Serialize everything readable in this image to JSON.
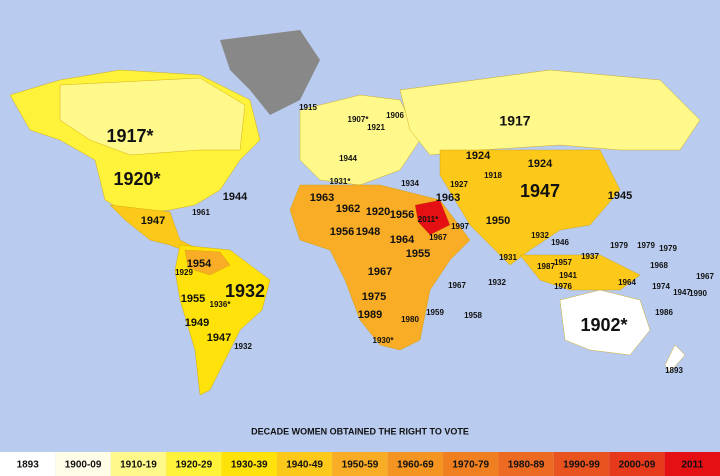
{
  "title": "DECADE WOMEN OBTAINED THE RIGHT TO VOTE",
  "legend": [
    {
      "label": "1893",
      "color": "#ffffff"
    },
    {
      "label": "1900-09",
      "color": "#fffce8"
    },
    {
      "label": "1910-19",
      "color": "#fff98c"
    },
    {
      "label": "1920-29",
      "color": "#fff23a"
    },
    {
      "label": "1930-39",
      "color": "#ffe20a"
    },
    {
      "label": "1940-49",
      "color": "#fcc81a"
    },
    {
      "label": "1950-59",
      "color": "#f9ac25"
    },
    {
      "label": "1960-69",
      "color": "#f49522"
    },
    {
      "label": "1970-79",
      "color": "#ef7f21"
    },
    {
      "label": "1980-89",
      "color": "#ec6a21"
    },
    {
      "label": "1990-99",
      "color": "#e9531f"
    },
    {
      "label": "2000-09",
      "color": "#e73a1d"
    },
    {
      "label": "2011",
      "color": "#e41014"
    }
  ],
  "labels": [
    "1917*",
    "1920*",
    "1944",
    "1947",
    "1961",
    "1915",
    "1907*",
    "1906",
    "1921",
    "1917",
    "1924",
    "1924",
    "1947",
    "1945",
    "1963",
    "1962",
    "1920",
    "1956",
    "2011*",
    "1963",
    "1950",
    "1927",
    "1918",
    "1934",
    "1931*",
    "1944",
    "1956",
    "1948",
    "1964",
    "1967",
    "1997",
    "1955",
    "1967",
    "1975",
    "1989",
    "1980",
    "1959",
    "1967",
    "1932",
    "1958",
    "1931",
    "1930*",
    "1954",
    "1955",
    "1932",
    "1949",
    "1947",
    "1932",
    "1929",
    "1936*",
    "1902*",
    "1893",
    "1979",
    "1979",
    "1979",
    "1968",
    "1967",
    "1990",
    "1947",
    "1974",
    "1986",
    "1964",
    "1941",
    "1957",
    "1937",
    "1987",
    "1976",
    "1946",
    "1932"
  ]
}
